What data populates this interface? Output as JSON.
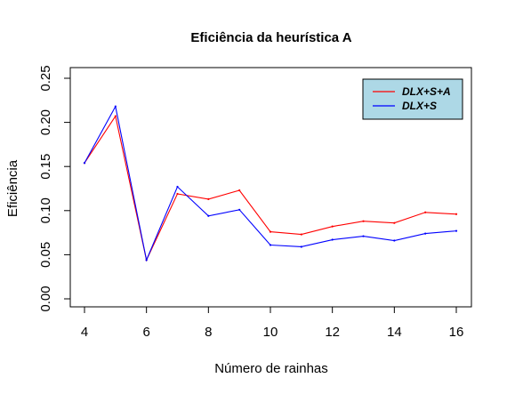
{
  "chart_data": {
    "type": "line",
    "title": "Eficiência da heurística A",
    "xlabel": "Número de rainhas",
    "ylabel": "Eficiência",
    "x": [
      4,
      5,
      6,
      7,
      8,
      9,
      10,
      11,
      12,
      13,
      14,
      15,
      16
    ],
    "xlim": [
      4,
      16
    ],
    "ylim": [
      0,
      0.25
    ],
    "xticks": [
      "4",
      "6",
      "8",
      "10",
      "12",
      "14",
      "16"
    ],
    "yticks": [
      "0.00",
      "0.05",
      "0.10",
      "0.15",
      "0.20",
      "0.25"
    ],
    "series": [
      {
        "name": "DLX+S+A",
        "color": "#ff0000",
        "values": [
          0.154,
          0.207,
          0.044,
          0.119,
          0.113,
          0.123,
          0.076,
          0.073,
          0.082,
          0.088,
          0.086,
          0.098,
          0.096
        ]
      },
      {
        "name": "DLX+S",
        "color": "#0000ff",
        "values": [
          0.154,
          0.218,
          0.044,
          0.127,
          0.094,
          0.101,
          0.061,
          0.059,
          0.067,
          0.071,
          0.066,
          0.074,
          0.077
        ]
      }
    ],
    "legend": {
      "position": "top-right",
      "background": "#add8e6"
    },
    "grid": false
  }
}
